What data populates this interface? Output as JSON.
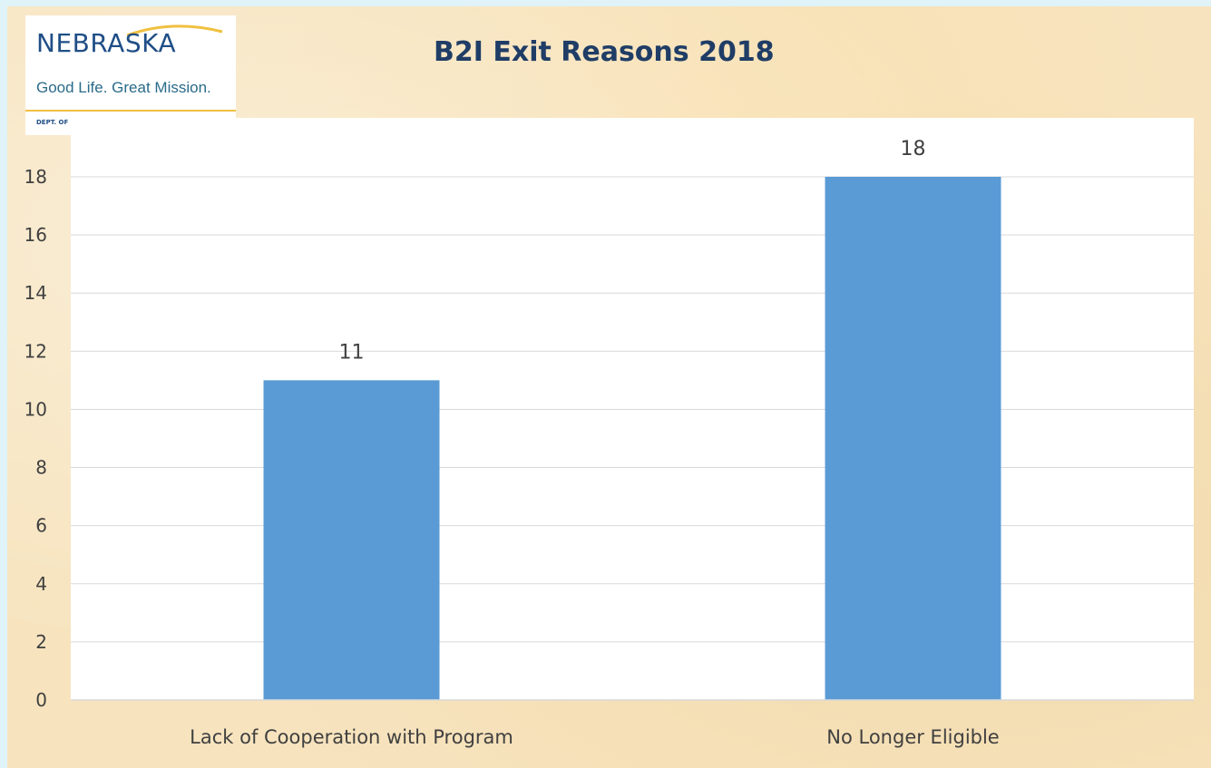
{
  "logo": {
    "state": "NEBRASKA",
    "tagline": "Good Life. Great Mission.",
    "dept": "DEPT. OF HEALTH AND HUMAN SERVICES"
  },
  "colors": {
    "bar": "#5b9bd5",
    "grid": "#d9d9d9",
    "title": "#1f3d66",
    "text": "#404040"
  },
  "chart_data": {
    "type": "bar",
    "title": "B2I Exit Reasons 2018",
    "categories": [
      "Lack of Cooperation with Program",
      "No Longer Eligible"
    ],
    "values": [
      11,
      18
    ],
    "data_labels": [
      "11",
      "18"
    ],
    "ylim": [
      0,
      18
    ],
    "yticks": [
      "0",
      "2",
      "4",
      "6",
      "8",
      "10",
      "12",
      "14",
      "16",
      "18"
    ],
    "grid": true,
    "legend": "none"
  }
}
